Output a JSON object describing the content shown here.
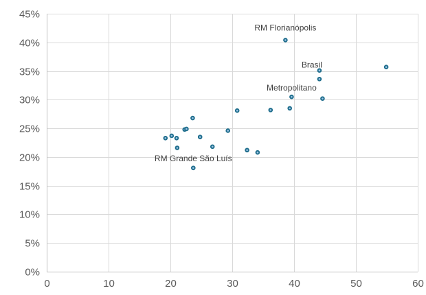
{
  "chart_data": {
    "type": "scatter",
    "title": "",
    "xlabel": "",
    "ylabel": "",
    "xlim": [
      0,
      60
    ],
    "ylim": [
      0,
      0.45
    ],
    "x_ticks": [
      0,
      10,
      20,
      30,
      40,
      50,
      60
    ],
    "x_tick_labels": [
      "0",
      "10",
      "20",
      "30",
      "40",
      "50",
      "60"
    ],
    "y_ticks": [
      0,
      0.05,
      0.1,
      0.15,
      0.2,
      0.25,
      0.3,
      0.35,
      0.4,
      0.45
    ],
    "y_tick_labels": [
      "0%",
      "5%",
      "10%",
      "15%",
      "20%",
      "25%",
      "30%",
      "35%",
      "40%",
      "45%"
    ],
    "grid": true,
    "legend": "none",
    "marker_color": "#1F6E8C",
    "marker_fill": "#9DC3E6",
    "series": [
      {
        "points": [
          {
            "x": 19.2,
            "y": 0.233
          },
          {
            "x": 20.2,
            "y": 0.237
          },
          {
            "x": 21.0,
            "y": 0.233
          },
          {
            "x": 21.1,
            "y": 0.216
          },
          {
            "x": 22.3,
            "y": 0.248
          },
          {
            "x": 22.6,
            "y": 0.249
          },
          {
            "x": 23.6,
            "y": 0.268
          },
          {
            "x": 23.7,
            "y": 0.181
          },
          {
            "x": 24.8,
            "y": 0.235
          },
          {
            "x": 26.8,
            "y": 0.218
          },
          {
            "x": 29.3,
            "y": 0.246
          },
          {
            "x": 30.8,
            "y": 0.281
          },
          {
            "x": 32.4,
            "y": 0.212
          },
          {
            "x": 34.1,
            "y": 0.208
          },
          {
            "x": 36.2,
            "y": 0.282
          },
          {
            "x": 38.6,
            "y": 0.404
          },
          {
            "x": 39.3,
            "y": 0.285
          },
          {
            "x": 39.6,
            "y": 0.305
          },
          {
            "x": 44.1,
            "y": 0.351
          },
          {
            "x": 44.1,
            "y": 0.336
          },
          {
            "x": 44.6,
            "y": 0.302
          },
          {
            "x": 54.9,
            "y": 0.357
          }
        ]
      }
    ],
    "annotations": [
      {
        "text": "RM Florianópolis",
        "x": 38.6,
        "y": 0.404
      },
      {
        "text": "Brasil",
        "x": 44.1,
        "y": 0.351
      },
      {
        "text": "Metropolitano",
        "x": 39.6,
        "y": 0.305
      },
      {
        "text": "RM Grande São Luís",
        "x": 23.7,
        "y": 0.181
      }
    ]
  }
}
